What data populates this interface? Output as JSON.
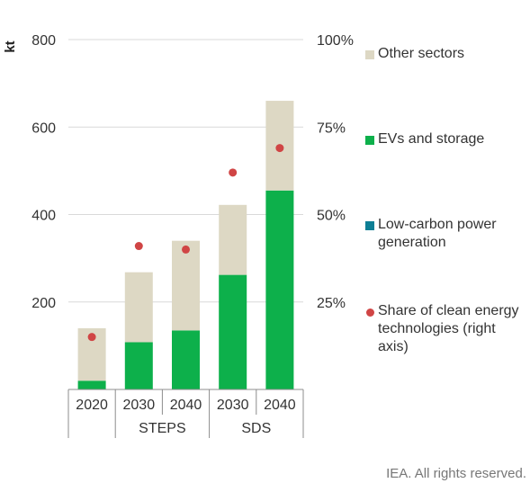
{
  "chart_data": {
    "type": "bar",
    "stacked": true,
    "ylabel": "kt",
    "ylim": [
      0,
      800
    ],
    "yticks": [
      200,
      400,
      600,
      800
    ],
    "y2lim": [
      0,
      100
    ],
    "y2ticks": [
      "25%",
      "50%",
      "75%",
      "100%"
    ],
    "grid": true,
    "categories": [
      "2020",
      "2030",
      "2040",
      "2030",
      "2040"
    ],
    "groups": [
      {
        "label": "",
        "categories": [
          "2020"
        ]
      },
      {
        "label": "STEPS",
        "categories": [
          "2030",
          "2040"
        ]
      },
      {
        "label": "SDS",
        "categories": [
          "2030",
          "2040"
        ]
      }
    ],
    "series": [
      {
        "name": "Other sectors",
        "color": "#ddd8c4",
        "values": [
          120,
          160,
          205,
          160,
          205
        ]
      },
      {
        "name": "EVs and storage",
        "color": "#0db04b",
        "values": [
          20,
          108,
          135,
          262,
          455
        ]
      },
      {
        "name": "Low-carbon power generation",
        "color": "#0e7f95",
        "values": [
          0,
          0,
          0,
          0,
          0
        ]
      }
    ],
    "share_series": {
      "name": "Share of clean energy technologies (right axis)",
      "color": "#d04545",
      "axis": "right",
      "values": [
        15,
        41,
        40,
        62,
        69
      ]
    },
    "legend_position": "right"
  },
  "legend": [
    {
      "label": "Other sectors"
    },
    {
      "label": "EVs and storage"
    },
    {
      "label": "Low-carbon power generation"
    },
    {
      "label": "Share of clean energy technologies (right axis)"
    }
  ],
  "credit": "IEA. All rights reserved."
}
